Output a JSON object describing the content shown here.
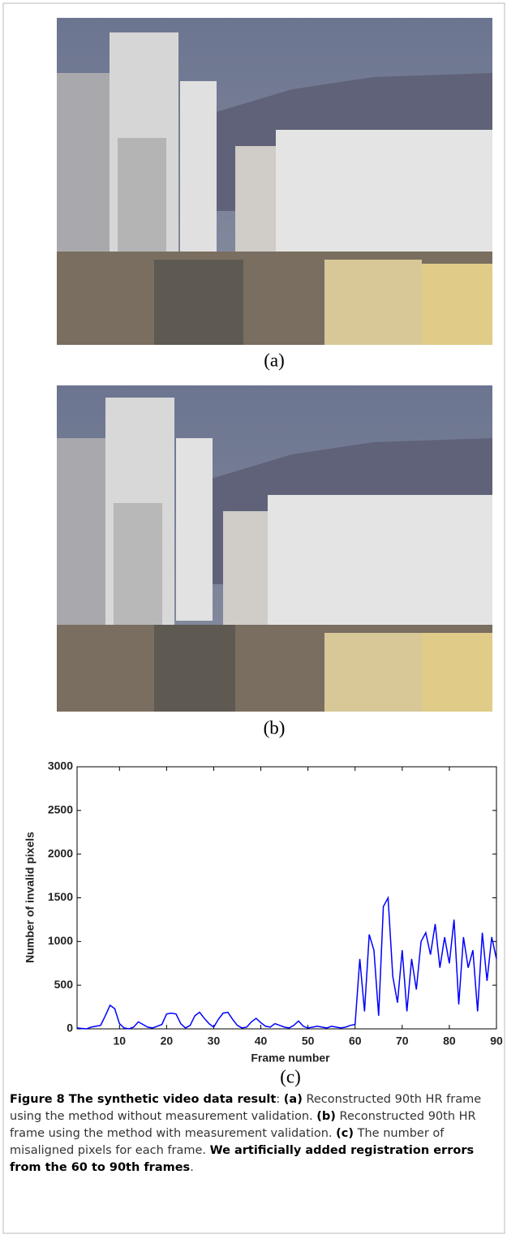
{
  "panel_labels": [
    "(a)",
    "(b)",
    "(c)"
  ],
  "chart_data": {
    "type": "line",
    "xlabel": "Frame number",
    "ylabel": "Number of invalid pixels",
    "x": [
      1,
      2,
      3,
      4,
      5,
      6,
      7,
      8,
      9,
      10,
      11,
      12,
      13,
      14,
      15,
      16,
      17,
      18,
      19,
      20,
      21,
      22,
      23,
      24,
      25,
      26,
      27,
      28,
      29,
      30,
      31,
      32,
      33,
      34,
      35,
      36,
      37,
      38,
      39,
      40,
      41,
      42,
      43,
      44,
      45,
      46,
      47,
      48,
      49,
      50,
      51,
      52,
      53,
      54,
      55,
      56,
      57,
      58,
      59,
      60,
      61,
      62,
      63,
      64,
      65,
      66,
      67,
      68,
      69,
      70,
      71,
      72,
      73,
      74,
      75,
      76,
      77,
      78,
      79,
      80,
      81,
      82,
      83,
      84,
      85,
      86,
      87,
      88,
      89,
      90
    ],
    "values": [
      10,
      5,
      0,
      20,
      30,
      40,
      150,
      270,
      230,
      60,
      10,
      0,
      20,
      80,
      50,
      20,
      10,
      30,
      50,
      170,
      180,
      170,
      60,
      10,
      40,
      150,
      190,
      120,
      60,
      20,
      110,
      180,
      190,
      110,
      40,
      10,
      20,
      80,
      120,
      70,
      30,
      20,
      60,
      40,
      20,
      10,
      40,
      90,
      30,
      10,
      20,
      30,
      20,
      10,
      30,
      20,
      10,
      20,
      40,
      50,
      800,
      200,
      1080,
      900,
      150,
      1400,
      1500,
      600,
      300,
      900,
      200,
      800,
      450,
      1000,
      1100,
      850,
      1200,
      700,
      1050,
      750,
      1250,
      280,
      1050,
      700,
      900,
      200,
      1100,
      550,
      1050,
      800
    ],
    "color": "#0000ff",
    "xlim": [
      1,
      90
    ],
    "xticks": [
      10,
      20,
      30,
      40,
      50,
      60,
      70,
      80,
      90
    ],
    "ylim": [
      0,
      3000
    ],
    "yticks": [
      0,
      500,
      1000,
      1500,
      2000,
      2500,
      3000
    ],
    "grid": false
  },
  "caption": {
    "parts": [
      {
        "text": "Figure 8 The synthetic video data result",
        "bold": true
      },
      {
        "text": ": ",
        "bold": false
      },
      {
        "text": "(a)",
        "bold": true
      },
      {
        "text": " Reconstructed 90th HR frame using the method without measurement validation. ",
        "bold": false
      },
      {
        "text": "(b)",
        "bold": true
      },
      {
        "text": " Reconstructed 90th HR frame using the method with measurement validation. ",
        "bold": false
      },
      {
        "text": "(c)",
        "bold": true
      },
      {
        "text": " The number of misaligned pixels for each frame. ",
        "bold": false
      },
      {
        "text": "We artificially added registration errors from the 60 to 90th frames",
        "bold": true
      },
      {
        "text": ".",
        "bold": false
      }
    ]
  }
}
